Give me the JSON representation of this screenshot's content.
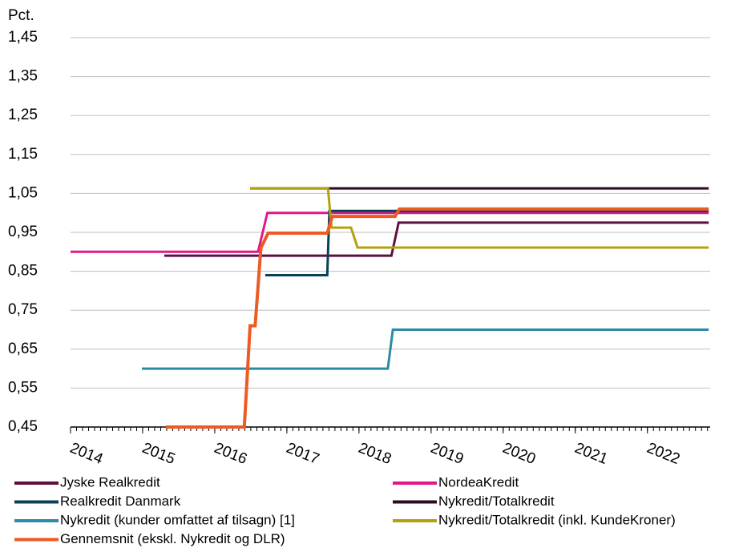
{
  "chart_data": {
    "type": "line",
    "y_label": "Pct.",
    "xlim": [
      2014,
      2022.87
    ],
    "xticks": [
      2014,
      2015,
      2016,
      2017,
      2018,
      2019,
      2020,
      2021,
      2022
    ],
    "ylim": [
      0.45,
      1.45
    ],
    "yticks": [
      {
        "value": 0.45,
        "label": "0,45"
      },
      {
        "value": 0.55,
        "label": "0,55"
      },
      {
        "value": 0.65,
        "label": "0,65"
      },
      {
        "value": 0.75,
        "label": "0,75"
      },
      {
        "value": 0.85,
        "label": "0,85"
      },
      {
        "value": 0.95,
        "label": "0,95"
      },
      {
        "value": 1.05,
        "label": "1,05"
      },
      {
        "value": 1.15,
        "label": "1,15"
      },
      {
        "value": 1.25,
        "label": "1,25"
      },
      {
        "value": 1.35,
        "label": "1,35"
      },
      {
        "value": 1.45,
        "label": "1,45"
      }
    ],
    "grid": true,
    "series": [
      {
        "name": "Jyske Realkredit",
        "color": "#5e0f3f",
        "x": [
          2015.3,
          2018.45,
          2018.55,
          2022.85
        ],
        "values": [
          0.89,
          0.89,
          0.975,
          0.975
        ]
      },
      {
        "name": "NordeaKredit",
        "color": "#e4168b",
        "x": [
          2014,
          2016.6,
          2016.73,
          2022.85
        ],
        "values": [
          0.9,
          0.9,
          1.0,
          1.0
        ]
      },
      {
        "name": "Realkredit Danmark",
        "color": "#0b4059",
        "x": [
          2016.7,
          2017.56,
          2017.59,
          2022.85
        ],
        "values": [
          0.84,
          0.84,
          1.005,
          1.005
        ]
      },
      {
        "name": "Nykredit/Totalkredit",
        "color": "#2d0a1f",
        "x": [
          2016.49,
          2022.85
        ],
        "values": [
          1.063,
          1.063
        ]
      },
      {
        "name": "Nykredit (kunder omfattet af tilsagn) [1]",
        "color": "#2a8aa8",
        "x": [
          2014.99,
          2018.4,
          2018.47,
          2022.85
        ],
        "values": [
          0.6,
          0.6,
          0.7,
          0.7
        ]
      },
      {
        "name": "Nykredit/Totalkredit (inkl. KundeKroner)",
        "color": "#b5a00f",
        "x": [
          2016.49,
          2017.57,
          2017.62,
          2017.89,
          2017.98,
          2022.85
        ],
        "values": [
          1.063,
          1.063,
          0.962,
          0.962,
          0.911,
          0.911
        ]
      },
      {
        "name": "Gennemsnit (ekskl. Nykredit og DLR)",
        "color": "#ee5a24",
        "x": [
          2015.32,
          2016.41,
          2016.49,
          2016.56,
          2016.64,
          2016.74,
          2017.56,
          2017.63,
          2018.5,
          2018.56,
          2022.85
        ],
        "values": [
          0.45,
          0.45,
          0.71,
          0.71,
          0.91,
          0.948,
          0.948,
          0.991,
          0.991,
          1.01,
          1.01
        ]
      }
    ]
  }
}
